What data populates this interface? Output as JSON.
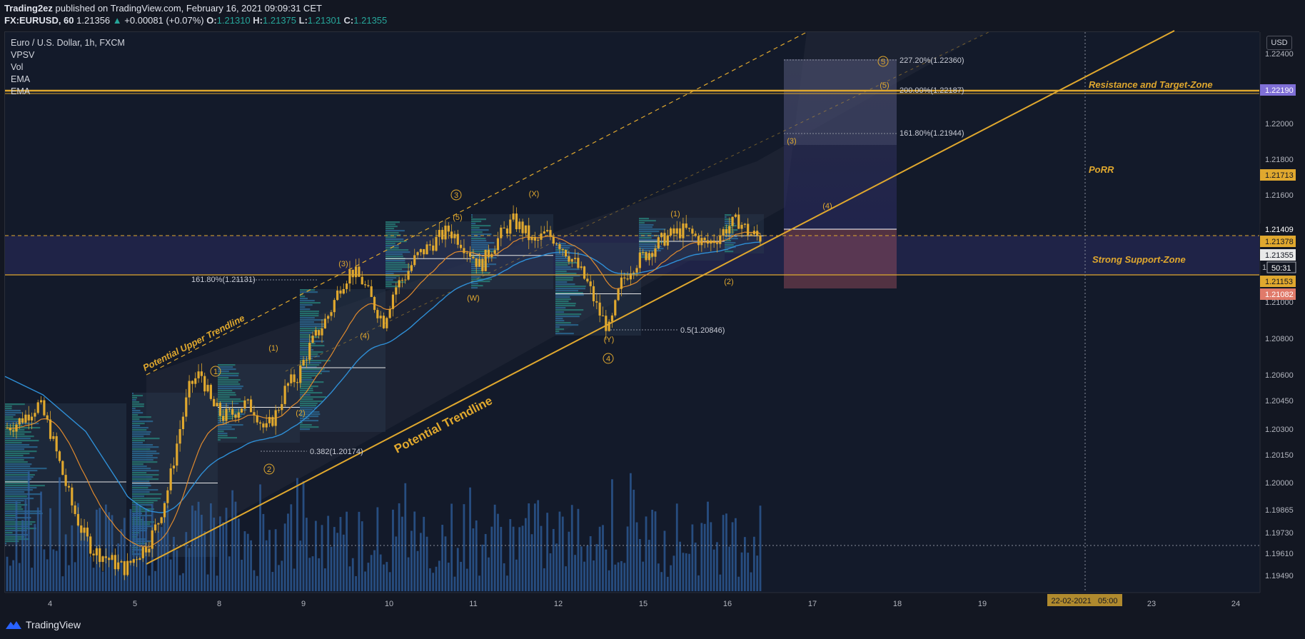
{
  "header": {
    "author": "Trading2ez",
    "published": "published on TradingView.com, February 16, 2021 09:09:31 CET",
    "symbol": "FX:EURUSD, 60",
    "last": "1.21356",
    "arrow": "▲",
    "change": "+0.00081 (+0.07%)",
    "o_label": "O:",
    "o": "1.21310",
    "h_label": "H:",
    "h": "1.21375",
    "l_label": "L:",
    "l": "1.21301",
    "c_label": "C:",
    "c": "1.21355"
  },
  "legend": {
    "title": "Euro / U.S. Dollar, 1h, FXCM",
    "indicators": [
      "VPSV",
      "Vol",
      "EMA",
      "EMA"
    ]
  },
  "axis": {
    "currency": "USD",
    "y_ticks": [
      "1.22400",
      "1.22000",
      "1.21800",
      "1.21600",
      "1.21000",
      "1.20800",
      "1.20600",
      "1.20450",
      "1.20300",
      "1.20150",
      "1.20000",
      "1.19865",
      "1.19730",
      "1.19610",
      "1.19490"
    ],
    "x_ticks": [
      "4",
      "5",
      "8",
      "9",
      "10",
      "11",
      "12",
      "15",
      "16",
      "17",
      "18",
      "19",
      "23",
      "24"
    ],
    "x_highlight": "22-02-2021   05:00",
    "price_badges": {
      "resistance": "1.22190",
      "porr": "1.21713",
      "level_a": "1.21409",
      "dashed": "1.21378",
      "last": "1.21355",
      "countdown": "50:31",
      "countdown_prefix": "1",
      "support": "1.21153",
      "stop": "1.21082"
    }
  },
  "annotations": {
    "resistance_zone": "Resistance and Target-Zone",
    "porr": "PoRR",
    "support_zone": "Strong Support-Zone",
    "upper_trendline": "Potential Upper Trendline",
    "trendline": "Potential Trendline",
    "fib_227": "227.20%(1.22360)",
    "fib_200": "200.00%(1.22187)",
    "fib_161b": "161.80%(1.21944)",
    "fib_161a": "161.80%(1.21131)",
    "fib_05": "0.5(1.20846)",
    "fib_0382": "0.382(1.20174)",
    "waves": {
      "c1": "1",
      "c2": "2",
      "c3": "3",
      "c4": "4",
      "c5": "5",
      "p1": "(1)",
      "p2": "(2)",
      "p3": "(3)",
      "p4": "(4)",
      "p5": "(5)",
      "w": "(W)",
      "x": "(X)",
      "y": "(Y)",
      "q1": "(1)",
      "q2": "(2)",
      "q3": "(3)",
      "q4": "(4)",
      "q5": "(5)"
    }
  },
  "footer": {
    "brand": "TradingView"
  },
  "colors": {
    "background": "#131722",
    "gold": "#e0a82e",
    "ema_fast": "#e08a2e",
    "ema_slow": "#2f8fd6",
    "volume": "#2f5f9e",
    "resistance_badge": "#7f6fd6",
    "stop_badge": "#e07a6a"
  },
  "chart_data": {
    "type": "candlestick",
    "ylim": [
      1.1942,
      1.2248
    ],
    "close_path": [
      1.2032,
      1.2035,
      1.204,
      1.2045,
      1.203,
      1.201,
      1.199,
      1.1975,
      1.1965,
      1.1962,
      1.1958,
      1.1955,
      1.1962,
      1.1968,
      1.198,
      1.2,
      1.203,
      1.2055,
      1.2062,
      1.2045,
      1.2038,
      1.204,
      1.2045,
      1.2042,
      1.203,
      1.204,
      1.2055,
      1.206,
      1.2075,
      1.2085,
      1.2095,
      1.211,
      1.2118,
      1.2112,
      1.21,
      1.209,
      1.2108,
      1.2115,
      1.2125,
      1.213,
      1.2135,
      1.214,
      1.2135,
      1.2128,
      1.212,
      1.213,
      1.2138,
      1.2145,
      1.214,
      1.2132,
      1.2138,
      1.2135,
      1.2128,
      1.212,
      1.211,
      1.2095,
      1.2085,
      1.211,
      1.212,
      1.2125,
      1.213,
      1.2135,
      1.2138,
      1.214,
      1.2136,
      1.2132,
      1.2136,
      1.2142,
      1.2145,
      1.2138,
      1.2136
    ]
  }
}
